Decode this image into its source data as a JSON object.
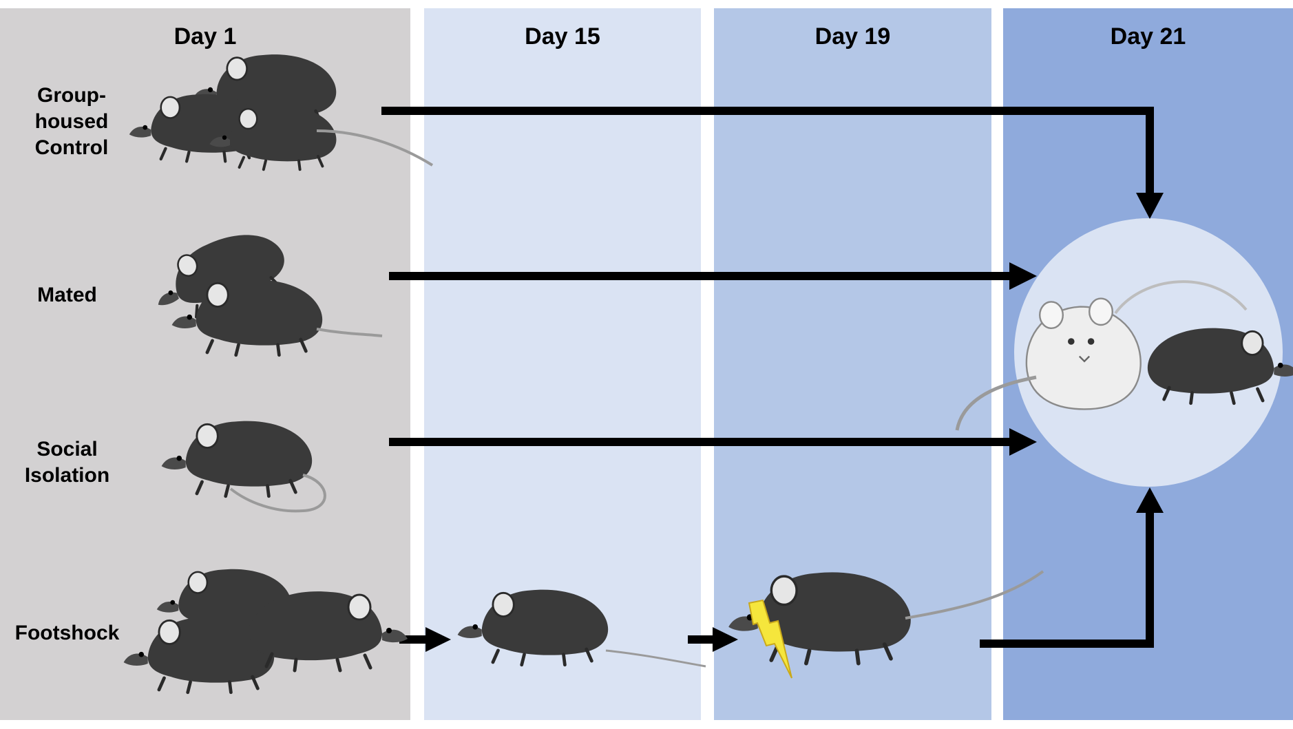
{
  "columns": [
    {
      "label": "Day 1",
      "color": "#d3d1d2"
    },
    {
      "label": "Day 15",
      "color": "#dae3f3"
    },
    {
      "label": "Day 19",
      "color": "#b4c7e7"
    },
    {
      "label": "Day 21",
      "color": "#8faadc"
    }
  ],
  "groups": [
    {
      "lines": [
        "Group-",
        "housed",
        "Control"
      ]
    },
    {
      "lines": [
        "Mated"
      ]
    },
    {
      "lines": [
        "Social",
        "Isolation"
      ]
    },
    {
      "lines": [
        "Footshock"
      ]
    }
  ],
  "colors": {
    "arrow": "#000000",
    "circle": "#dae3f3",
    "bolt": "#f5e63c",
    "mouse_dark": "#3a3a3a",
    "mouse_light": "#eeeeee"
  }
}
